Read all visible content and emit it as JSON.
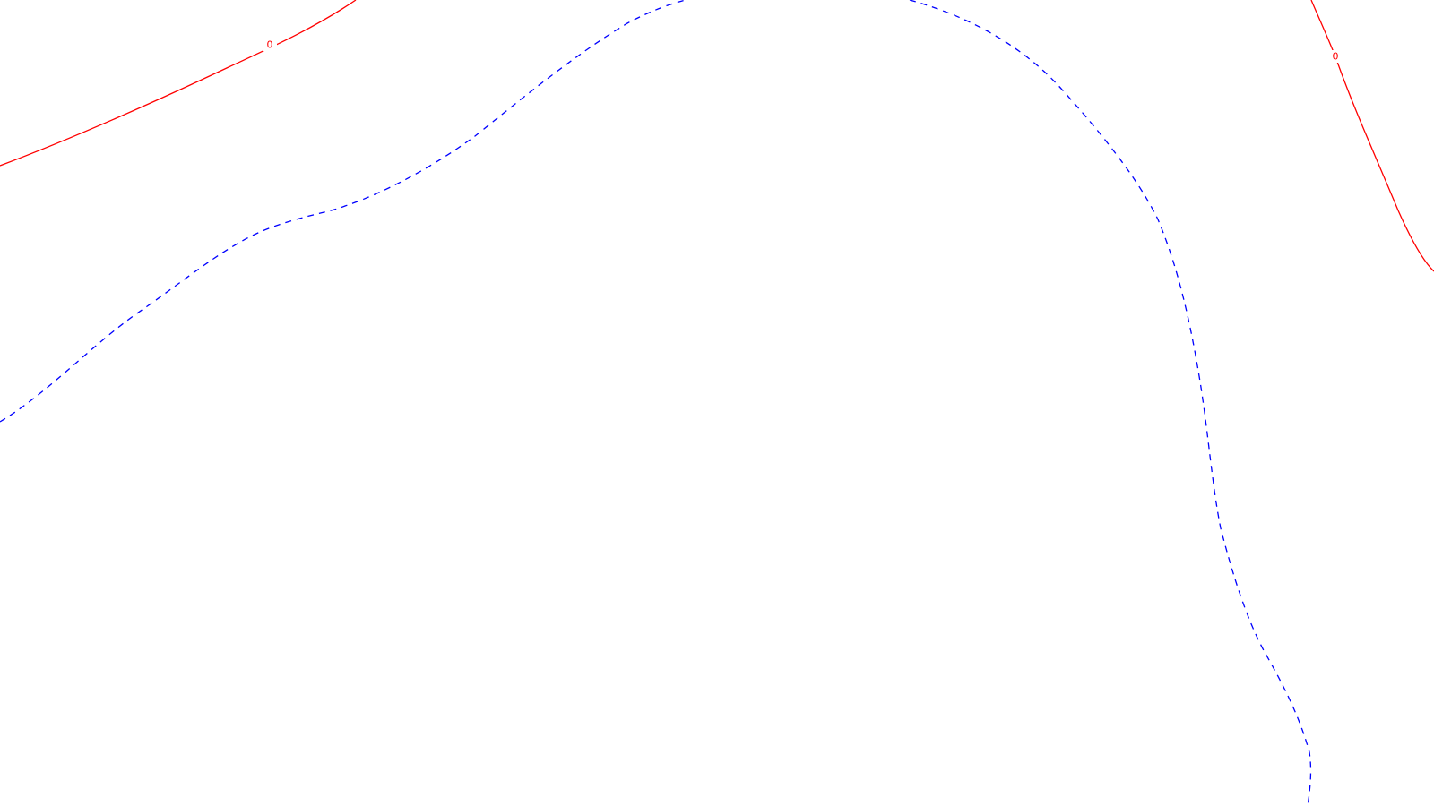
{
  "map": {
    "background_color": "#ffffff",
    "contours": [
      {
        "name": "zero-contour-upper-left",
        "style": "solid",
        "color": "#ff0000",
        "label": "0"
      },
      {
        "name": "zero-contour-upper-right",
        "style": "solid",
        "color": "#ff0000",
        "label": "0"
      },
      {
        "name": "negative-contour-arc",
        "style": "dashed",
        "color": "#0000ff",
        "label": ""
      }
    ]
  }
}
